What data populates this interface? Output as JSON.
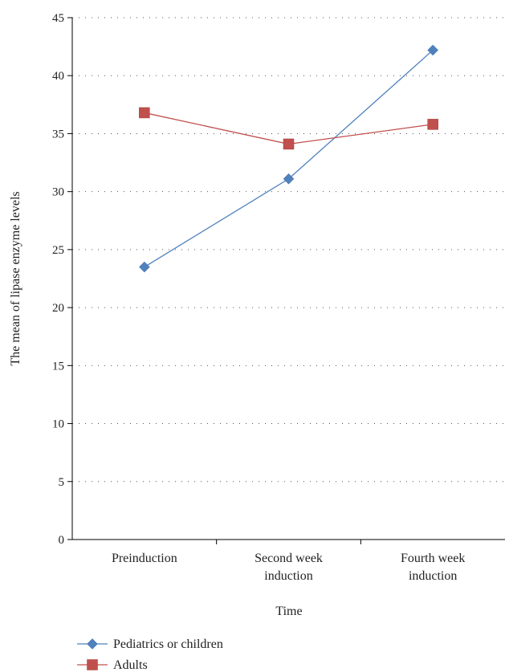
{
  "chart_data": {
    "type": "line",
    "title": "",
    "xlabel": "Time",
    "ylabel": "The mean of lipase enzyme levels",
    "ylim": [
      0,
      45
    ],
    "yticks": [
      "0",
      "5",
      "10",
      "15",
      "20",
      "25",
      "30",
      "35",
      "40",
      "45"
    ],
    "categories": [
      [
        "Preinduction"
      ],
      [
        "Second week",
        "induction"
      ],
      [
        "Fourth week",
        "induction"
      ]
    ],
    "grid": "dotted horizontal",
    "legend_position": "bottom-left",
    "series": [
      {
        "name": "Pediatrics or children",
        "marker": "diamond",
        "color": "#4f81bd",
        "values": [
          23.5,
          31.1,
          42.2
        ]
      },
      {
        "name": "Adults",
        "marker": "square",
        "color": "#c0504d",
        "values": [
          36.8,
          34.1,
          35.8
        ]
      }
    ]
  }
}
